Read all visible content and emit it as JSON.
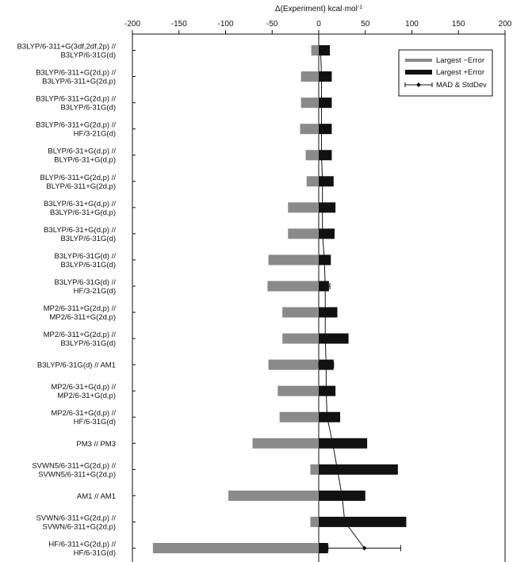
{
  "chart_data": {
    "type": "bar",
    "orientation": "horizontal",
    "xlabel": "Δ(Experiment) kcal·mol",
    "xlabel_sup": "-1",
    "xlim": [
      -200,
      200
    ],
    "xticks": [
      "-200",
      "-150",
      "-100",
      "-50",
      "0",
      "50",
      "100",
      "150",
      "200"
    ],
    "xtick_values": [
      -200,
      -150,
      -100,
      -50,
      0,
      50,
      100,
      150,
      200
    ],
    "legend_position": "top-right",
    "legend": {
      "neg": "Largest −Error",
      "pos": "Largest +Error",
      "mad": "MAD & StdDev"
    },
    "colors": {
      "neg": "#8a8a8a",
      "pos": "#111111",
      "mad": "#111111"
    },
    "categories": [
      [
        "B3LYP/6-311+G(3df,2df,2p) //",
        "B3LYP/6-31G(d)"
      ],
      [
        "B3LYP/6-311+G(2d,p) //",
        "B3LYP/6-311+G(2d,p)"
      ],
      [
        "B3LYP/6-311+G(2d,p) //",
        "B3LYP/6-31G(d)"
      ],
      [
        "B3LYP/6-311+G(2d,p) //",
        "HF/3-21G(d)"
      ],
      [
        "BLYP/6-31+G(d,p) //",
        "BLYP/6-31+G(d,p)"
      ],
      [
        "BLYP/6-311+G(2d,p) //",
        "BLYP/6-311+G(2d,p)"
      ],
      [
        "B3LYP/6-31+G(d,p) //",
        "B3LYP/6-31+G(d,p)"
      ],
      [
        "B3LYP/6-31+G(d,p) //",
        "B3LYP/6-31G(d)"
      ],
      [
        "B3LYP/6-31G(d) //",
        "B3LYP/6-31G(d)"
      ],
      [
        "B3LYP/6-31G(d) //",
        "HF/3-21G(d)"
      ],
      [
        "MP2/6-311+G(2d,p) //",
        "MP2/6-311+G(2d,p)"
      ],
      [
        "MP2/6-311+G(2d,p) //",
        "B3LYP/6-31G(d)"
      ],
      [
        "B3LYP/6-31G(d) // AM1"
      ],
      [
        "MP2/6-31+G(d,p) //",
        "MP2/6-31+G(d,p)"
      ],
      [
        "MP2/6-31+G(d,p) //",
        "HF/6-31G(d)"
      ],
      [
        "PM3 // PM3"
      ],
      [
        "SVWN5/6-311+G(2d,p) //",
        "SVWN5/6-311+G(2d,p)"
      ],
      [
        "AM1 // AM1"
      ],
      [
        "SVWN/6-311+G(2d,p) //",
        "SVWN/6-311+G(2d,p)"
      ],
      [
        "HF/6-311+G(2d,p) //",
        "HF/6-31G(d)"
      ]
    ],
    "series": [
      {
        "name": "Largest −Error",
        "values": [
          -8,
          -19,
          -19,
          -20,
          -14,
          -13,
          -33,
          -33,
          -54,
          -55,
          -39,
          -39,
          -54,
          -44,
          -42,
          -71,
          -9,
          -97,
          -9,
          -178
        ]
      },
      {
        "name": "Largest +Error",
        "values": [
          12,
          14,
          14,
          14,
          14,
          16,
          18,
          17,
          13,
          11,
          20,
          32,
          16,
          18,
          23,
          52,
          85,
          50,
          94,
          10
        ]
      },
      {
        "name": "MAD",
        "values": [
          2,
          3,
          3,
          3,
          3,
          4,
          4,
          4,
          6,
          7,
          7,
          7,
          8,
          8,
          9,
          15,
          20,
          25,
          28,
          49
        ]
      },
      {
        "name": "StdDev",
        "values": [
          1,
          1,
          1,
          1,
          1,
          1,
          1,
          1,
          5,
          5,
          1,
          1,
          8,
          4,
          1,
          1,
          1,
          1,
          1,
          39
        ]
      }
    ]
  }
}
